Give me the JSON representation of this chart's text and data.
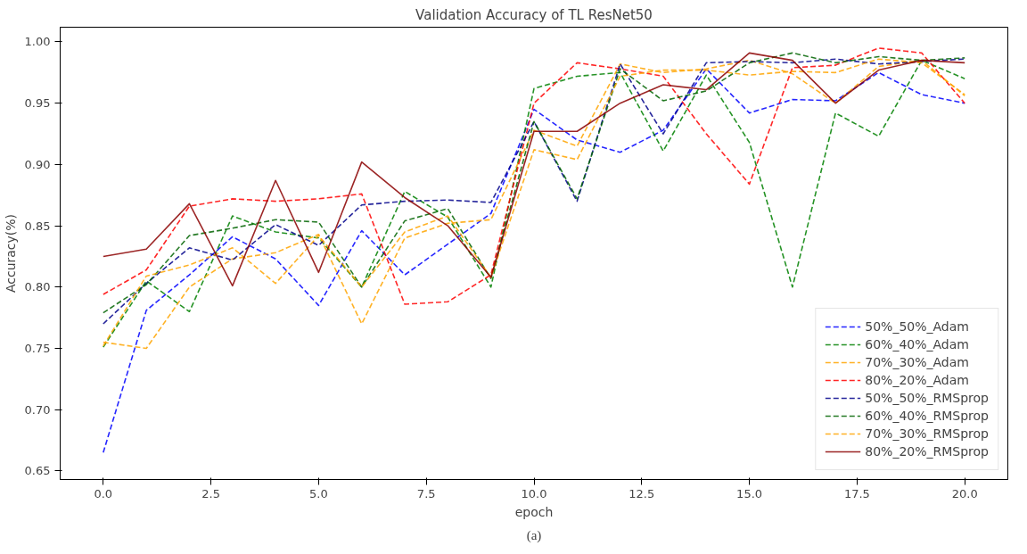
{
  "chart_data": {
    "type": "line",
    "title": "Validation Accuracy of TL ResNet50",
    "xlabel": "epoch",
    "ylabel": "Accuracy(%)",
    "annotations": [
      "(a)"
    ],
    "x": [
      0,
      1,
      2,
      3,
      4,
      5,
      6,
      7,
      8,
      9,
      10,
      11,
      12,
      13,
      14,
      15,
      16,
      17,
      18,
      19,
      20
    ],
    "xlim": [
      -1.0,
      21.0
    ],
    "ylim": [
      0.643,
      1.012
    ],
    "xticks": [
      {
        "value": 0,
        "label": "0.0"
      },
      {
        "value": 2.5,
        "label": "2.5"
      },
      {
        "value": 5,
        "label": "5.0"
      },
      {
        "value": 7.5,
        "label": "7.5"
      },
      {
        "value": 10,
        "label": "10.0"
      },
      {
        "value": 12.5,
        "label": "12.5"
      },
      {
        "value": 15,
        "label": "15.0"
      },
      {
        "value": 17.5,
        "label": "17.5"
      },
      {
        "value": 20,
        "label": "20.0"
      }
    ],
    "yticks": [
      0.65,
      {
        "value": 0.7,
        "label": "0.70"
      },
      0.75,
      {
        "value": 0.8,
        "label": "0.80"
      },
      0.85,
      {
        "value": 0.9,
        "label": "0.90"
      },
      0.95,
      {
        "value": 1.0,
        "label": "1.00"
      }
    ],
    "grid": false,
    "legend": "bottom right",
    "marker": "none",
    "series": [
      {
        "name": "50%_50%_Adam",
        "color": "#0000ff",
        "line_style": "dashed",
        "values": [
          0.665,
          0.781,
          0.81,
          0.841,
          0.823,
          0.785,
          0.846,
          0.81,
          0.835,
          0.86,
          0.945,
          0.92,
          0.91,
          0.928,
          0.978,
          0.942,
          0.953,
          0.952,
          0.975,
          0.957,
          0.95
        ]
      },
      {
        "name": "60%_40%_Adam",
        "color": "#008000",
        "line_style": "dashed",
        "values": [
          0.751,
          0.805,
          0.78,
          0.858,
          0.845,
          0.84,
          0.8,
          0.878,
          0.857,
          0.8,
          0.962,
          0.972,
          0.975,
          0.911,
          0.973,
          0.918,
          0.8,
          0.942,
          0.923,
          0.985,
          0.97
        ]
      },
      {
        "name": "70%_30%_Adam",
        "color": "#ffa500",
        "line_style": "dashed",
        "values": [
          0.755,
          0.75,
          0.8,
          0.823,
          0.828,
          0.843,
          0.77,
          0.84,
          0.852,
          0.855,
          0.928,
          0.915,
          0.982,
          0.975,
          0.978,
          0.985,
          0.974,
          0.95,
          0.98,
          0.985,
          0.956
        ]
      },
      {
        "name": "80%_20%_Adam",
        "color": "#ff0000",
        "line_style": "dashed",
        "values": [
          0.794,
          0.814,
          0.866,
          0.872,
          0.87,
          0.872,
          0.876,
          0.786,
          0.788,
          0.81,
          0.95,
          0.983,
          0.978,
          0.972,
          0.925,
          0.884,
          0.979,
          0.981,
          0.995,
          0.991,
          0.95
        ]
      },
      {
        "name": "50%_50%_RMSprop",
        "color": "#00008b",
        "line_style": "dashed",
        "values": [
          0.77,
          0.803,
          0.832,
          0.822,
          0.851,
          0.834,
          0.867,
          0.87,
          0.871,
          0.869,
          0.935,
          0.87,
          0.982,
          0.925,
          0.983,
          0.984,
          0.983,
          0.986,
          0.982,
          0.984,
          0.986
        ]
      },
      {
        "name": "60%_40%_RMSprop",
        "color": "#006400",
        "line_style": "dashed",
        "values": [
          0.779,
          0.802,
          0.842,
          0.848,
          0.855,
          0.853,
          0.8,
          0.854,
          0.864,
          0.807,
          0.935,
          0.872,
          0.978,
          0.952,
          0.96,
          0.983,
          0.991,
          0.983,
          0.988,
          0.985,
          0.987
        ]
      },
      {
        "name": "70%_30%_RMSprop",
        "color": "#ffa500",
        "line_style": "dashed",
        "values": [
          0.752,
          0.809,
          0.818,
          0.832,
          0.803,
          0.842,
          0.8,
          0.845,
          0.858,
          0.808,
          0.912,
          0.904,
          0.972,
          0.977,
          0.977,
          0.973,
          0.976,
          0.975,
          0.986,
          0.983,
          0.957
        ]
      },
      {
        "name": "80%_20%_RMSprop",
        "color": "#8b0000",
        "line_style": "solid",
        "values": [
          0.825,
          0.831,
          0.868,
          0.801,
          0.887,
          0.812,
          0.902,
          0.873,
          0.85,
          0.808,
          0.927,
          0.927,
          0.95,
          0.965,
          0.961,
          0.991,
          0.985,
          0.95,
          0.977,
          0.985,
          0.983
        ]
      }
    ]
  }
}
